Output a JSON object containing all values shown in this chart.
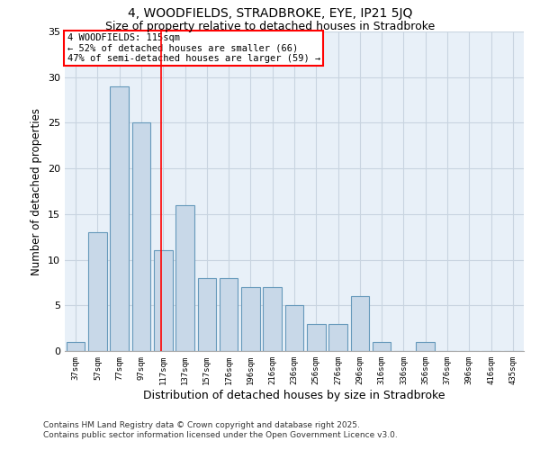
{
  "title1": "4, WOODFIELDS, STRADBROKE, EYE, IP21 5JQ",
  "title2": "Size of property relative to detached houses in Stradbroke",
  "xlabel": "Distribution of detached houses by size in Stradbroke",
  "ylabel": "Number of detached properties",
  "bin_labels": [
    "37sqm",
    "57sqm",
    "77sqm",
    "97sqm",
    "117sqm",
    "137sqm",
    "157sqm",
    "176sqm",
    "196sqm",
    "216sqm",
    "236sqm",
    "256sqm",
    "276sqm",
    "296sqm",
    "316sqm",
    "336sqm",
    "356sqm",
    "376sqm",
    "396sqm",
    "416sqm",
    "435sqm"
  ],
  "bar_heights": [
    1,
    13,
    29,
    25,
    11,
    16,
    8,
    8,
    7,
    7,
    5,
    3,
    3,
    6,
    1,
    0,
    1,
    0,
    0,
    0,
    0
  ],
  "bar_color": "#c8d8e8",
  "bar_edge_color": "#6699bb",
  "red_line_x": 3.9,
  "annotation_text": "4 WOODFIELDS: 115sqm\n← 52% of detached houses are smaller (66)\n47% of semi-detached houses are larger (59) →",
  "annotation_box_color": "white",
  "annotation_box_edge_color": "red",
  "ylim": [
    0,
    35
  ],
  "yticks": [
    0,
    5,
    10,
    15,
    20,
    25,
    30,
    35
  ],
  "grid_color": "#c8d4e0",
  "background_color": "#e8f0f8",
  "footer_text": "Contains HM Land Registry data © Crown copyright and database right 2025.\nContains public sector information licensed under the Open Government Licence v3.0.",
  "title_fontsize": 10,
  "subtitle_fontsize": 9
}
